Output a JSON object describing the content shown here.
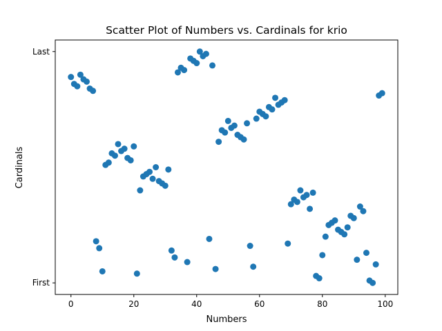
{
  "chart_data": {
    "type": "scatter",
    "title": "Scatter Plot of Numbers vs. Cardinals for krio",
    "xlabel": "Numbers",
    "ylabel": "Cardinals",
    "xlim": [
      -5,
      104
    ],
    "ylim": [
      -0.05,
      1.05
    ],
    "x_ticks": [
      0,
      20,
      40,
      60,
      80,
      100
    ],
    "y_ticks": [
      {
        "value": 0,
        "label": "First"
      },
      {
        "value": 1,
        "label": "Last"
      }
    ],
    "marker_color": "#1f77b4",
    "points": [
      [
        0,
        0.89
      ],
      [
        1,
        0.86
      ],
      [
        2,
        0.85
      ],
      [
        3,
        0.9
      ],
      [
        4,
        0.88
      ],
      [
        5,
        0.87
      ],
      [
        6,
        0.84
      ],
      [
        7,
        0.83
      ],
      [
        8,
        0.18
      ],
      [
        9,
        0.15
      ],
      [
        10,
        0.05
      ],
      [
        11,
        0.51
      ],
      [
        12,
        0.52
      ],
      [
        13,
        0.56
      ],
      [
        14,
        0.55
      ],
      [
        15,
        0.6
      ],
      [
        16,
        0.57
      ],
      [
        17,
        0.58
      ],
      [
        18,
        0.54
      ],
      [
        19,
        0.53
      ],
      [
        20,
        0.59
      ],
      [
        21,
        0.04
      ],
      [
        22,
        0.4
      ],
      [
        23,
        0.46
      ],
      [
        24,
        0.47
      ],
      [
        25,
        0.48
      ],
      [
        26,
        0.45
      ],
      [
        27,
        0.5
      ],
      [
        28,
        0.44
      ],
      [
        29,
        0.43
      ],
      [
        30,
        0.42
      ],
      [
        31,
        0.49
      ],
      [
        32,
        0.14
      ],
      [
        33,
        0.11
      ],
      [
        34,
        0.91
      ],
      [
        35,
        0.93
      ],
      [
        36,
        0.92
      ],
      [
        37,
        0.09
      ],
      [
        38,
        0.97
      ],
      [
        39,
        0.96
      ],
      [
        40,
        0.95
      ],
      [
        41,
        1.0
      ],
      [
        42,
        0.98
      ],
      [
        43,
        0.99
      ],
      [
        44,
        0.19
      ],
      [
        45,
        0.94
      ],
      [
        46,
        0.06
      ],
      [
        47,
        0.61
      ],
      [
        48,
        0.66
      ],
      [
        49,
        0.65
      ],
      [
        50,
        0.7
      ],
      [
        51,
        0.67
      ],
      [
        52,
        0.68
      ],
      [
        53,
        0.64
      ],
      [
        54,
        0.63
      ],
      [
        55,
        0.62
      ],
      [
        56,
        0.69
      ],
      [
        57,
        0.16
      ],
      [
        58,
        0.07
      ],
      [
        59,
        0.71
      ],
      [
        60,
        0.74
      ],
      [
        61,
        0.73
      ],
      [
        62,
        0.72
      ],
      [
        63,
        0.76
      ],
      [
        64,
        0.75
      ],
      [
        65,
        0.8
      ],
      [
        66,
        0.77
      ],
      [
        67,
        0.78
      ],
      [
        68,
        0.79
      ],
      [
        69,
        0.17
      ],
      [
        70,
        0.34
      ],
      [
        71,
        0.36
      ],
      [
        72,
        0.35
      ],
      [
        73,
        0.4
      ],
      [
        74,
        0.37
      ],
      [
        75,
        0.38
      ],
      [
        76,
        0.32
      ],
      [
        77,
        0.39
      ],
      [
        78,
        0.03
      ],
      [
        79,
        0.02
      ],
      [
        80,
        0.12
      ],
      [
        81,
        0.2
      ],
      [
        82,
        0.25
      ],
      [
        83,
        0.26
      ],
      [
        84,
        0.27
      ],
      [
        85,
        0.23
      ],
      [
        86,
        0.22
      ],
      [
        87,
        0.21
      ],
      [
        88,
        0.24
      ],
      [
        89,
        0.29
      ],
      [
        90,
        0.28
      ],
      [
        91,
        0.1
      ],
      [
        92,
        0.33
      ],
      [
        93,
        0.31
      ],
      [
        94,
        0.13
      ],
      [
        95,
        0.01
      ],
      [
        96,
        0.0
      ],
      [
        97,
        0.08
      ],
      [
        98,
        0.81
      ],
      [
        99,
        0.82
      ]
    ]
  }
}
